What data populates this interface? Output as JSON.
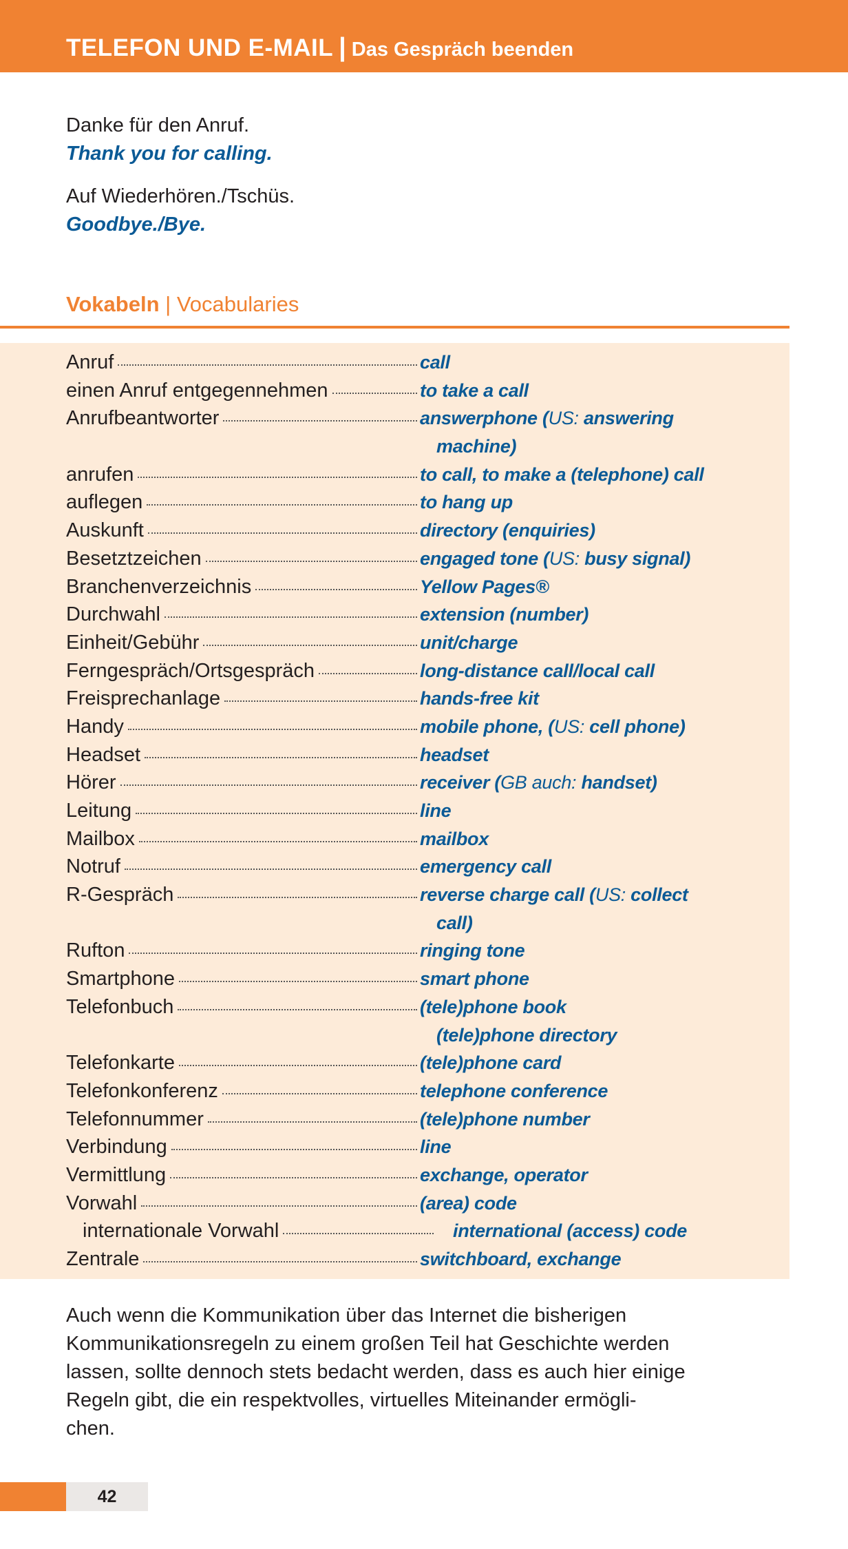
{
  "header": {
    "title": "TELEFON UND E-MAIL",
    "separator": "|",
    "subtitle": "Das Gespräch beenden"
  },
  "colors": {
    "accent": "#f08232",
    "english": "#0b5a96",
    "vocab_bg": "#fdebd9"
  },
  "phrases": [
    {
      "de": "Danke für den Anruf.",
      "en": "Thank you for calling."
    },
    {
      "de": "Auf Wiederhören./Tschüs.",
      "en": "Goodbye./Bye."
    }
  ],
  "vocab": {
    "heading": "Vokabeln",
    "separator": "|",
    "heading_en": "Vocabularies",
    "rows": [
      {
        "de": "Anruf",
        "en": [
          {
            "t": "call"
          }
        ]
      },
      {
        "de": "einen Anruf entgegennehmen",
        "en": [
          {
            "t": "to take a call"
          }
        ]
      },
      {
        "de": "Anrufbeantworter",
        "en": [
          {
            "t": "answerphone ("
          },
          {
            "t": "US:",
            "r": true
          },
          {
            "t": " answering"
          }
        ]
      },
      {
        "de": "",
        "en": [
          {
            "t": "machine)"
          }
        ]
      },
      {
        "de": "anrufen",
        "en": [
          {
            "t": "to call, to make a (telephone) call"
          }
        ]
      },
      {
        "de": "auflegen",
        "en": [
          {
            "t": "to hang up"
          }
        ]
      },
      {
        "de": "Auskunft",
        "en": [
          {
            "t": "directory (enquiries)"
          }
        ]
      },
      {
        "de": "Besetztzeichen",
        "en": [
          {
            "t": "engaged tone ("
          },
          {
            "t": "US:",
            "r": true
          },
          {
            "t": " busy signal)"
          }
        ]
      },
      {
        "de": "Branchenverzeichnis",
        "en": [
          {
            "t": "Yellow Pages®"
          }
        ]
      },
      {
        "de": "Durchwahl",
        "en": [
          {
            "t": "extension (number)"
          }
        ]
      },
      {
        "de": "Einheit/Gebühr",
        "en": [
          {
            "t": "unit/charge"
          }
        ]
      },
      {
        "de": "Ferngespräch/Ortsgespräch",
        "en": [
          {
            "t": "long-distance call/local call"
          }
        ]
      },
      {
        "de": "Freisprechanlage",
        "en": [
          {
            "t": "hands-free kit"
          }
        ]
      },
      {
        "de": "Handy",
        "en": [
          {
            "t": "mobile phone, ("
          },
          {
            "t": "US:",
            "r": true
          },
          {
            "t": " cell phone)"
          }
        ]
      },
      {
        "de": "Headset",
        "en": [
          {
            "t": "headset"
          }
        ]
      },
      {
        "de": "Hörer",
        "en": [
          {
            "t": "receiver ("
          },
          {
            "t": "GB auch:",
            "r": true
          },
          {
            "t": " handset)"
          }
        ]
      },
      {
        "de": "Leitung",
        "en": [
          {
            "t": "line"
          }
        ]
      },
      {
        "de": "Mailbox",
        "en": [
          {
            "t": "mailbox"
          }
        ]
      },
      {
        "de": "Notruf",
        "en": [
          {
            "t": "emergency call"
          }
        ]
      },
      {
        "de": "R-Gespräch",
        "en": [
          {
            "t": "reverse charge call ("
          },
          {
            "t": "US:",
            "r": true
          },
          {
            "t": " collect"
          }
        ]
      },
      {
        "de": "",
        "en": [
          {
            "t": "call)"
          }
        ]
      },
      {
        "de": "Rufton",
        "en": [
          {
            "t": "ringing tone"
          }
        ]
      },
      {
        "de": "Smartphone",
        "en": [
          {
            "t": "smart phone"
          }
        ]
      },
      {
        "de": "Telefonbuch",
        "en": [
          {
            "t": "(tele)phone book"
          }
        ]
      },
      {
        "de": "",
        "en": [
          {
            "t": "(tele)phone directory"
          }
        ]
      },
      {
        "de": "Telefonkarte",
        "en": [
          {
            "t": "(tele)phone card"
          }
        ]
      },
      {
        "de": "Telefonkonferenz",
        "en": [
          {
            "t": "telephone conference"
          }
        ]
      },
      {
        "de": "Telefonnummer",
        "en": [
          {
            "t": "(tele)phone number"
          }
        ]
      },
      {
        "de": "Verbindung",
        "en": [
          {
            "t": "line"
          }
        ]
      },
      {
        "de": "Vermittlung",
        "en": [
          {
            "t": "exchange, operator"
          }
        ]
      },
      {
        "de": "Vorwahl",
        "en": [
          {
            "t": "(area) code"
          }
        ]
      },
      {
        "de": "internationale Vorwahl",
        "indent": true,
        "en": [
          {
            "t": "international (access) code"
          }
        ]
      },
      {
        "de": "Zentrale",
        "en": [
          {
            "t": "switchboard, exchange"
          }
        ]
      }
    ]
  },
  "paragraph": {
    "lines": [
      "Auch wenn die Kommunikation über das Internet die bisherigen",
      "Kommunikationsregeln zu einem großen Teil hat Geschichte werden",
      "lassen, sollte dennoch stets bedacht werden, dass es auch hier einige",
      "Regeln gibt, die ein respektvolles, virtuelles Miteinander ermögli-",
      "chen."
    ]
  },
  "footer": {
    "page_number": "42"
  }
}
